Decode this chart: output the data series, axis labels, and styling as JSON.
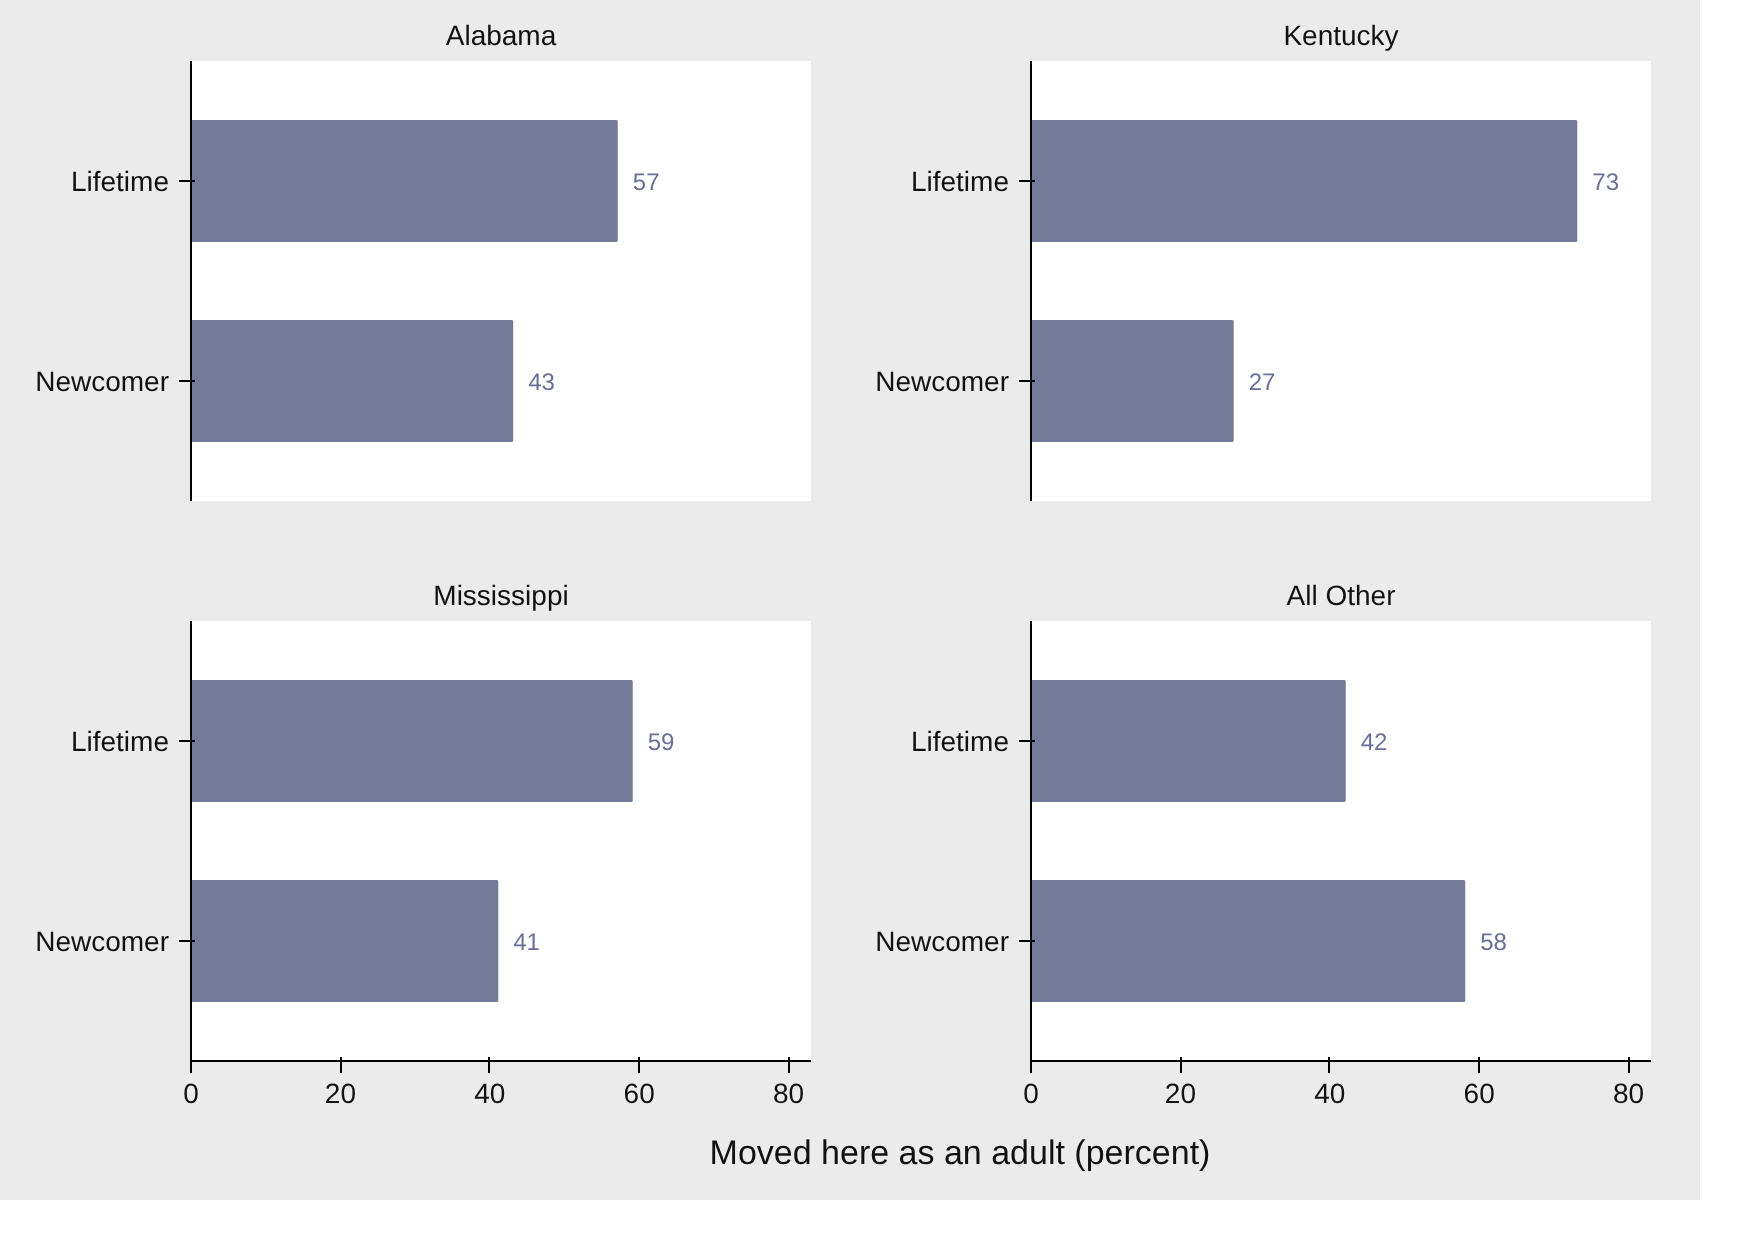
{
  "chart_data": [
    {
      "type": "bar",
      "orientation": "horizontal",
      "title": "Alabama",
      "categories": [
        "Lifetime",
        "Newcomer"
      ],
      "values": [
        57,
        43
      ],
      "color": "#737a98",
      "data_labels": true,
      "xlim": [
        0,
        83
      ],
      "xticks": [
        0,
        20,
        40,
        60,
        80
      ],
      "grid": false,
      "tick_labels": "y"
    },
    {
      "type": "bar",
      "orientation": "horizontal",
      "title": "Kentucky",
      "categories": [
        "Lifetime",
        "Newcomer"
      ],
      "values": [
        73,
        27
      ],
      "color": "#737a98",
      "data_labels": true,
      "xlim": [
        0,
        83
      ],
      "xticks": [
        0,
        20,
        40,
        60,
        80
      ],
      "grid": false,
      "tick_labels": "y"
    },
    {
      "type": "bar",
      "orientation": "horizontal",
      "title": "Mississippi",
      "categories": [
        "Lifetime",
        "Newcomer"
      ],
      "values": [
        59,
        41
      ],
      "color": "#737a98",
      "data_labels": true,
      "xlim": [
        0,
        83
      ],
      "xticks": [
        0,
        20,
        40,
        60,
        80
      ],
      "grid": false,
      "xlabel": "Moved here as an adult  (percent)"
    },
    {
      "type": "bar",
      "orientation": "horizontal",
      "title": "All Other",
      "categories": [
        "Lifetime",
        "Newcomer"
      ],
      "values": [
        42,
        58
      ],
      "color": "#737a98",
      "data_labels": true,
      "xlim": [
        0,
        83
      ],
      "xticks": [
        0,
        20,
        40,
        60,
        80
      ],
      "grid": false
    }
  ]
}
